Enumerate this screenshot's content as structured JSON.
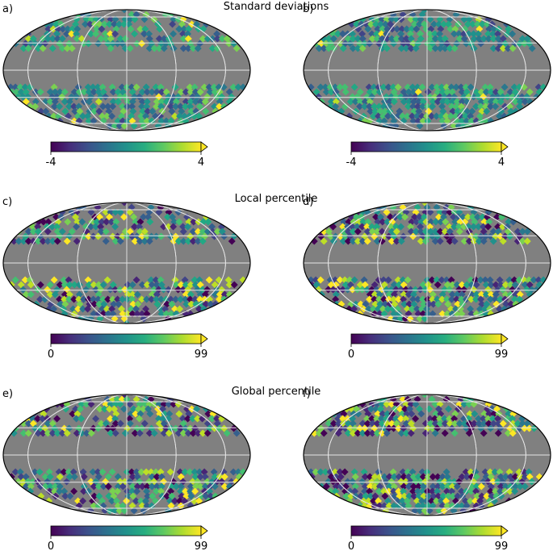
{
  "figure": {
    "rows": [
      {
        "title": "Standard deviations"
      },
      {
        "title": "Local percentile"
      },
      {
        "title": "Global percentile"
      }
    ]
  },
  "chart_data": [
    {
      "type": "heatmap",
      "projection": "mollweide",
      "panel": "a)",
      "row": 0,
      "col": 0,
      "colormap": "viridis",
      "masked_color": "#808080",
      "colorbar_range": [
        -4,
        4
      ],
      "colorbar_ticks": [
        "-4",
        "4"
      ],
      "colorbar_extend": "max",
      "pattern_seed": 11
    },
    {
      "type": "heatmap",
      "projection": "mollweide",
      "panel": "b)",
      "row": 0,
      "col": 1,
      "colormap": "viridis",
      "masked_color": "#808080",
      "colorbar_range": [
        -4,
        4
      ],
      "colorbar_ticks": [
        "-4",
        "4"
      ],
      "colorbar_extend": "max",
      "pattern_seed": 23
    },
    {
      "type": "heatmap",
      "projection": "mollweide",
      "panel": "c)",
      "row": 1,
      "col": 0,
      "colormap": "viridis",
      "masked_color": "#808080",
      "colorbar_range": [
        0,
        99
      ],
      "colorbar_ticks": [
        "0",
        "99"
      ],
      "colorbar_extend": "max",
      "pattern_seed": 37
    },
    {
      "type": "heatmap",
      "projection": "mollweide",
      "panel": "d)",
      "row": 1,
      "col": 1,
      "colormap": "viridis",
      "masked_color": "#808080",
      "colorbar_range": [
        0,
        99
      ],
      "colorbar_ticks": [
        "0",
        "99"
      ],
      "colorbar_extend": "max",
      "pattern_seed": 41
    },
    {
      "type": "heatmap",
      "projection": "mollweide",
      "panel": "e)",
      "row": 2,
      "col": 0,
      "colormap": "viridis",
      "masked_color": "#808080",
      "colorbar_range": [
        0,
        99
      ],
      "colorbar_ticks": [
        "0",
        "99"
      ],
      "colorbar_extend": "max",
      "pattern_seed": 53
    },
    {
      "type": "heatmap",
      "projection": "mollweide",
      "panel": "f)",
      "row": 2,
      "col": 1,
      "colormap": "viridis",
      "masked_color": "#808080",
      "colorbar_range": [
        0,
        99
      ],
      "colorbar_ticks": [
        "0",
        "99"
      ],
      "colorbar_extend": "max",
      "pattern_seed": 67
    }
  ]
}
